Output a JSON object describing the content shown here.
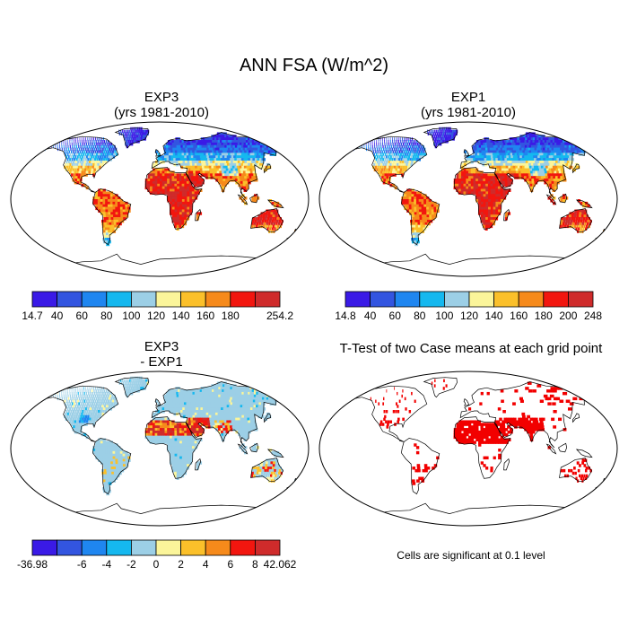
{
  "figure": {
    "main_title": "ANN FSA (W/m^2)",
    "note": "Cells are significant at 0.1 level"
  },
  "panels": [
    {
      "id": "exp3",
      "title_line1": "EXP3",
      "title_line2": "(yrs 1981-2010)"
    },
    {
      "id": "exp1",
      "title_line1": "EXP1",
      "title_line2": "(yrs 1981-2010)"
    },
    {
      "id": "diff",
      "title_line1": "EXP3",
      "title_line2": "- EXP1"
    },
    {
      "id": "ttest",
      "title_line1": "T-Test of two Case means at each grid point",
      "title_line2": ""
    }
  ],
  "colors": {
    "abs_scale": [
      "#3a1ae6",
      "#3355e0",
      "#1f86f0",
      "#15b8ef",
      "#9ccfe6",
      "#fbf59a",
      "#fbc02a",
      "#f68a1b",
      "#f2160f",
      "#cf2b2b"
    ],
    "diff_scale": [
      "#3a1ae6",
      "#3355e0",
      "#1f86f0",
      "#15b8ef",
      "#9ccfe6",
      "#fbf59a",
      "#fbc02a",
      "#f68a1b",
      "#f2160f",
      "#cf2b2b"
    ],
    "significant": "#f20000",
    "coast": "#000000"
  },
  "chart_data": [
    {
      "type": "heatmap",
      "title": "EXP3 (yrs 1981-2010)",
      "colorbar_labels": [
        "14.7",
        "40",
        "60",
        "80",
        "100",
        "120",
        "140",
        "160",
        "180",
        "",
        "254.2"
      ],
      "colorbar_min": 14.7,
      "colorbar_max": 254.2
    },
    {
      "type": "heatmap",
      "title": "EXP1 (yrs 1981-2010)",
      "colorbar_labels": [
        "14.8",
        "40",
        "60",
        "80",
        "100",
        "120",
        "140",
        "160",
        "180",
        "200",
        "248"
      ],
      "colorbar_min": 14.8,
      "colorbar_max": 248
    },
    {
      "type": "heatmap",
      "title": "EXP3 - EXP1",
      "colorbar_labels": [
        "-36.98",
        "",
        "-6",
        "-4",
        "-2",
        "0",
        "2",
        "4",
        "6",
        "8",
        "42.062"
      ],
      "colorbar_min": -36.98,
      "colorbar_max": 42.062
    },
    {
      "type": "heatmap",
      "title": "T-Test of two Case means at each grid point",
      "significance_level": 0.1
    }
  ]
}
